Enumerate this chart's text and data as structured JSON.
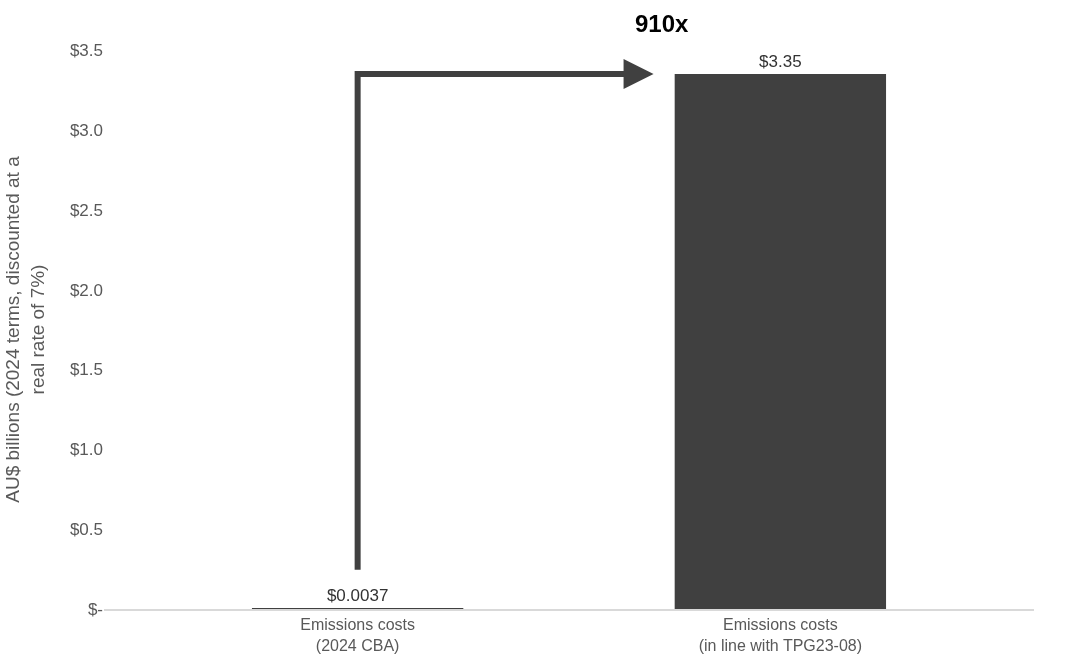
{
  "chart_data": {
    "type": "bar",
    "categories": [
      "Emissions costs\n(2024 CBA)",
      "Emissions costs\n(in line with TPG23-08)"
    ],
    "values": [
      0.0037,
      3.35
    ],
    "value_labels": [
      "$0.0037",
      "$3.35"
    ],
    "color": "#404040",
    "ylabel": "AU$ billions (2024 terms, discounted at a\nreal rate of 7%)",
    "ylim": [
      0,
      3.5
    ],
    "yticks": [
      {
        "value": 0,
        "label": "$-"
      },
      {
        "value": 0.5,
        "label": "$0.5"
      },
      {
        "value": 1,
        "label": "$1.0"
      },
      {
        "value": 1.5,
        "label": "$1.5"
      },
      {
        "value": 2,
        "label": "$2.0"
      },
      {
        "value": 2.5,
        "label": "$2.5"
      },
      {
        "value": 3,
        "label": "$3.0"
      },
      {
        "value": 3.5,
        "label": "$3.5"
      }
    ],
    "legend": false,
    "annotations": [
      "910x"
    ]
  }
}
